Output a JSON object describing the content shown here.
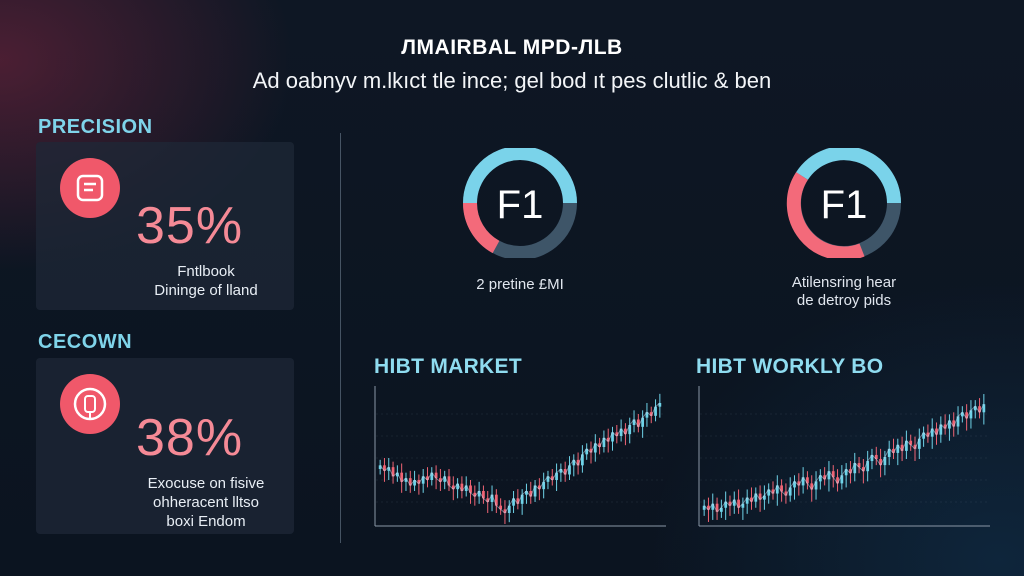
{
  "header": {
    "title": "ЛMAIRBAL MPD-ЛLB",
    "subtitle": "Ad oabnyv m.lkıct tle ince; gel bod ıt pes clutlic & ben"
  },
  "left_panel": {
    "cards": [
      {
        "section_label": "PRECISION",
        "icon": "document-icon",
        "value": "35%",
        "text_lines": [
          "Fntlbook",
          "Dininge of lland"
        ]
      },
      {
        "section_label": "CECOWN",
        "icon": "shield-badge-icon",
        "value": "38%",
        "text_lines": [
          "Exocuse on fisive",
          "ohheracent lltso",
          "boxi Endom"
        ]
      }
    ]
  },
  "rings": [
    {
      "label": "F1",
      "caption_lines": [
        "2 pretine £MI"
      ],
      "colors": {
        "primary": "#7ad3ea",
        "secondary": "#f36a7a",
        "track": "#3e5568"
      }
    },
    {
      "label": "F1",
      "caption_lines": [
        "Atilensring hear",
        "de detroy pids"
      ],
      "colors": {
        "primary": "#7ad3ea",
        "secondary": "#f36a7a",
        "track": "#3e5568"
      }
    }
  ],
  "chart_data": [
    {
      "type": "candlestick",
      "title": "HIBT MARKET",
      "colors": {
        "up": "#6fd3e8",
        "down": "#f06474"
      },
      "close": [
        44,
        41,
        43,
        38,
        40,
        35,
        37,
        33,
        36,
        34,
        38,
        36,
        40,
        37,
        35,
        38,
        33,
        31,
        34,
        30,
        33,
        29,
        27,
        30,
        26,
        24,
        28,
        22,
        20,
        18,
        22,
        26,
        23,
        28,
        30,
        27,
        33,
        31,
        35,
        38,
        36,
        40,
        42,
        39,
        44,
        47,
        44,
        50,
        53,
        51,
        56,
        54,
        59,
        57,
        62,
        60,
        64,
        61,
        66,
        69,
        65,
        70,
        73,
        71,
        76,
        78
      ],
      "overlay_line": true
    },
    {
      "type": "candlestick",
      "title": "HIBT WORKLY BO",
      "colors": {
        "up": "#6fd3e8",
        "down": "#f06474"
      },
      "close": [
        30,
        28,
        31,
        27,
        29,
        32,
        30,
        33,
        29,
        31,
        34,
        32,
        36,
        33,
        35,
        38,
        36,
        40,
        37,
        35,
        39,
        42,
        40,
        44,
        41,
        38,
        42,
        45,
        43,
        47,
        44,
        41,
        45,
        48,
        46,
        51,
        49,
        47,
        52,
        55,
        53,
        50,
        54,
        58,
        56,
        60,
        57,
        62,
        60,
        58,
        63,
        66,
        64,
        68,
        65,
        70,
        68,
        72,
        69,
        74,
        76,
        73,
        77,
        79,
        76,
        80
      ],
      "overlay_line": true
    }
  ]
}
